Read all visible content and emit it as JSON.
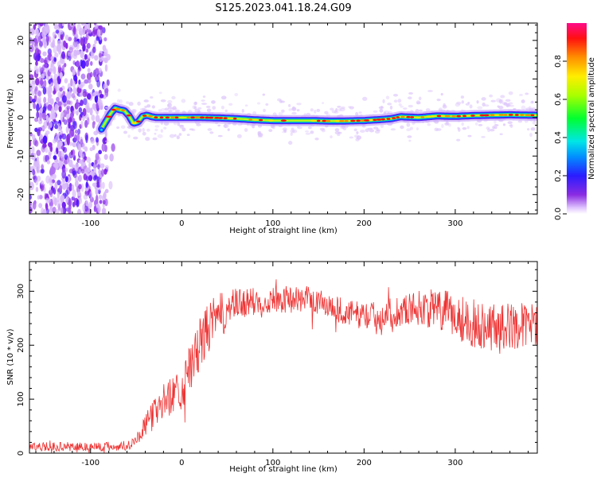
{
  "title": "S125.2023.041.18.24.G09",
  "chart_data": [
    {
      "type": "heatmap",
      "xlabel": "Height of straight line (km)",
      "ylabel": "Frequency (Hz)",
      "xlim": [
        -167,
        390
      ],
      "ylim": [
        -25,
        24.5
      ],
      "xticks": [
        -100,
        0,
        100,
        200,
        300
      ],
      "yticks": [
        -20,
        -10,
        0,
        10,
        20
      ],
      "colorbar": {
        "label": "Normalized spectral amplitude",
        "range": [
          0.0,
          1.0
        ],
        "ticks": [
          "0.0",
          "0.2",
          "0.4",
          "0.6",
          "0.8"
        ],
        "colormap": "rainbow (white → purple → blue → cyan → green → yellow → orange → red → magenta)"
      },
      "ridge": {
        "x": [
          -88,
          -83,
          -78,
          -73,
          -68,
          -63,
          -58,
          -53,
          -48,
          -43,
          -38,
          -33,
          -28,
          -20,
          0,
          20,
          40,
          60,
          80,
          100,
          120,
          140,
          160,
          180,
          200,
          220,
          230,
          240,
          260,
          280,
          300,
          320,
          340,
          360,
          380,
          388
        ],
        "y": [
          -3.0,
          -1.0,
          1.0,
          2.4,
          2.0,
          1.8,
          0.5,
          -1.5,
          -1.2,
          0.3,
          0.6,
          0.2,
          0.0,
          0.0,
          0.0,
          0.0,
          -0.1,
          -0.3,
          -0.6,
          -0.8,
          -0.8,
          -0.8,
          -0.9,
          -0.9,
          -0.8,
          -0.5,
          -0.3,
          0.2,
          0.0,
          0.4,
          0.3,
          0.5,
          0.6,
          0.7,
          0.6,
          0.6
        ]
      }
    },
    {
      "type": "line",
      "xlabel": "Height of straight line (km)",
      "ylabel": "SNR (10 * v/v)",
      "xlim": [
        -167,
        390
      ],
      "ylim": [
        0,
        355
      ],
      "xticks": [
        -100,
        0,
        100,
        200,
        300
      ],
      "yticks": [
        0,
        100,
        200,
        300
      ],
      "series": [
        {
          "color": "#ee3333",
          "trend_x": [
            -167,
            -120,
            -80,
            -60,
            -50,
            -40,
            -30,
            -20,
            -10,
            0,
            10,
            20,
            30,
            40,
            50,
            60,
            80,
            100,
            120,
            140,
            160,
            180,
            200,
            220,
            240,
            260,
            280,
            300,
            320,
            340,
            360,
            390
          ],
          "trend_y": [
            12,
            12,
            12,
            14,
            25,
            50,
            75,
            95,
            110,
            120,
            160,
            200,
            235,
            250,
            265,
            275,
            280,
            285,
            285,
            285,
            275,
            260,
            255,
            255,
            265,
            270,
            265,
            255,
            240,
            235,
            235,
            240
          ],
          "noise_x": [
            -167,
            -50,
            -30,
            0,
            20,
            40,
            60,
            100,
            200,
            250,
            300,
            340,
            390
          ],
          "noise_amp": [
            8,
            10,
            30,
            40,
            50,
            45,
            30,
            25,
            25,
            30,
            45,
            45,
            40
          ]
        }
      ]
    }
  ]
}
